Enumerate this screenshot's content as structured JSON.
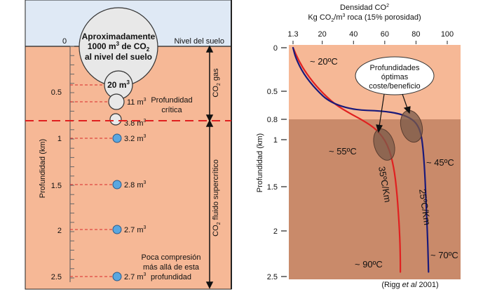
{
  "left": {
    "air_label_ground": "Nivel del suelo",
    "depth_zero": "0",
    "big_bubble_lines": [
      "Aproximadamente",
      "1000 m",
      "3",
      " de CO",
      "2",
      "al nivel del suelo"
    ],
    "axis_label": "Profundidad (km)",
    "depth_ticks": [
      "0.5",
      "1",
      "1.5",
      "2",
      "2.5"
    ],
    "bubbles": [
      {
        "label": "20 m",
        "sup": "3"
      },
      {
        "label": "11 m",
        "sup": "3"
      },
      {
        "label": "3.8 m",
        "sup": "3"
      },
      {
        "label": "3.2 m",
        "sup": "3"
      },
      {
        "label": "2.8 m",
        "sup": "3"
      },
      {
        "label": "2.7 m",
        "sup": "3"
      },
      {
        "label": "2.7 m",
        "sup": "3"
      }
    ],
    "critical_label": [
      "Profundidad",
      "crítica"
    ],
    "gas_label": {
      "main": "CO",
      "sub": "2",
      "rest": " gas"
    },
    "supercritical_label": {
      "main": "CO",
      "sub": "2",
      "rest": " fluido supercrítico"
    },
    "low_compression": [
      "Poca compresión",
      "más allá de esta",
      "profundidad"
    ]
  },
  "right": {
    "title_line1": {
      "main": "Densidad CO",
      "sub": "2"
    },
    "title_line2": {
      "a": "Kg CO",
      "sub": "2",
      "b": "/m",
      "sup": "3",
      "c": " roca (15% porosidad)"
    },
    "axis_label": "Profundidad (km)",
    "callout": [
      "Profundidades",
      "óptimas",
      "coste/beneficio"
    ],
    "citation": {
      "pre": "(Rigg ",
      "it": "et al",
      "post": " 2001)"
    },
    "annotations": [
      {
        "text": "~ 20ºC"
      },
      {
        "text": "~ 55ºC"
      },
      {
        "text": "~ 45ºC"
      },
      {
        "text": "~ 90ºC"
      },
      {
        "text": "~ 70ºC"
      }
    ],
    "gradient_labels": [
      "35ºC/Km",
      "25ºC/Km"
    ]
  },
  "chart_data": {
    "type": "line",
    "title": "",
    "xlabel": "Densidad CO2 Kg CO2/m3 roca (15% porosidad)",
    "ylabel": "Profundidad (km)",
    "xlim": [
      1.3,
      100
    ],
    "ylim": [
      2.5,
      0
    ],
    "x_ticks": [
      "1.3",
      "20",
      "40",
      "60",
      "80",
      "100"
    ],
    "y_ticks": [
      "0",
      "0.5",
      "0.8",
      "1",
      "1.5",
      "2",
      "2.5"
    ],
    "y_scale": "nonlinear (compressed above 0.8 km)",
    "background_colors": {
      "shallow": "#f6b896",
      "deep": "#c98a6a"
    },
    "series": [
      {
        "name": "35ºC/Km",
        "color": "#e02020",
        "points": [
          [
            1.3,
            0
          ],
          [
            5,
            0.15
          ],
          [
            10,
            0.3
          ],
          [
            18,
            0.48
          ],
          [
            28,
            0.64
          ],
          [
            38,
            0.74
          ],
          [
            46,
            0.81
          ],
          [
            55,
            0.9
          ],
          [
            62,
            1.05
          ],
          [
            66,
            1.3
          ],
          [
            68,
            1.6
          ],
          [
            69.5,
            2
          ],
          [
            70,
            2.3
          ],
          [
            70,
            2.45
          ]
        ]
      },
      {
        "name": "25ºC/Km",
        "color": "#1a1a7a",
        "points": [
          [
            1.3,
            0
          ],
          [
            3,
            0.12
          ],
          [
            8,
            0.3
          ],
          [
            16,
            0.48
          ],
          [
            25,
            0.62
          ],
          [
            40,
            0.7
          ],
          [
            58,
            0.71
          ],
          [
            70,
            0.74
          ],
          [
            78,
            0.8
          ],
          [
            82,
            0.88
          ],
          [
            84,
            1.0
          ],
          [
            85.5,
            1.3
          ],
          [
            86.5,
            1.7
          ],
          [
            87.5,
            2.1
          ],
          [
            88,
            2.45
          ]
        ]
      }
    ],
    "legend": "none",
    "grid": false
  }
}
